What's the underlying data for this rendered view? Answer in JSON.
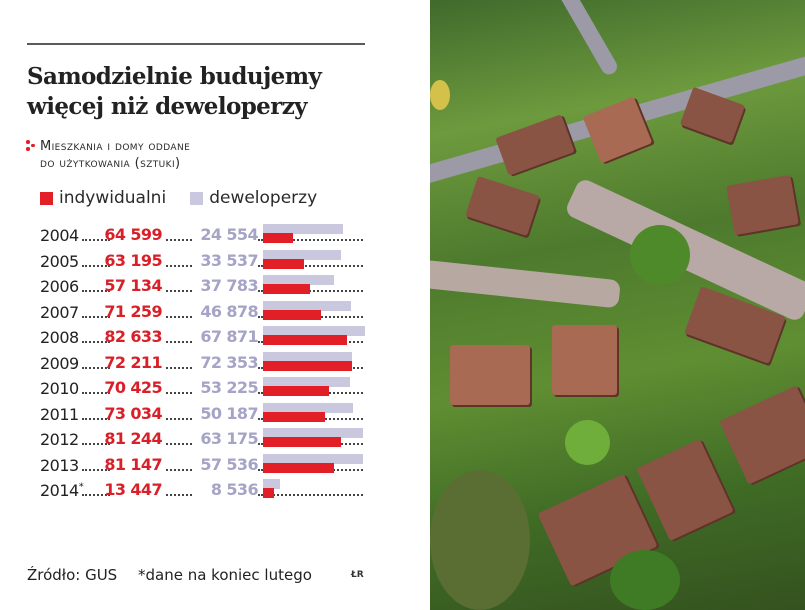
{
  "header": {
    "title_lines": [
      "Samodzielnie budujemy",
      "więcej niż deweloperzy"
    ],
    "subtitle_lines": [
      "Mieszkania i domy oddane",
      "do użytkowania (sztuki)"
    ],
    "bullet_icon": "three-dots-icon"
  },
  "legend": [
    {
      "label": "indywidualni",
      "color": "#e21f26"
    },
    {
      "label": "deweloperzy",
      "color": "#c9c8df"
    }
  ],
  "footer": {
    "source": "Źródło: GUS",
    "note": "*dane na koniec lutego",
    "credit": "ŁR"
  },
  "photo": {
    "description": "aerial tilt-shift photo of suburban houses"
  },
  "chart_data": {
    "type": "bar",
    "title": "Samodzielnie budujemy więcej niż deweloperzy",
    "subtitle": "Mieszkania i domy oddane do użytkowania (sztuki)",
    "categories": [
      "2004",
      "2005",
      "2006",
      "2007",
      "2008",
      "2009",
      "2010",
      "2011",
      "2012",
      "2013",
      "2014*"
    ],
    "category_labels": [
      "2004",
      "2005",
      "2006",
      "2007",
      "2008",
      "2009",
      "2010",
      "2011",
      "2012",
      "2013",
      "2014"
    ],
    "series": [
      {
        "name": "indywidualni",
        "values": [
          64599,
          63195,
          57134,
          71259,
          82633,
          72211,
          70425,
          73034,
          81244,
          81147,
          13447
        ],
        "labels": [
          "64 599",
          "63 195",
          "57 134",
          "71 259",
          "82 633",
          "72 211",
          "70 425",
          "73 034",
          "81 244",
          "81 147",
          "13 447"
        ]
      },
      {
        "name": "deweloperzy",
        "values": [
          24554,
          33537,
          37783,
          46878,
          67871,
          72353,
          53225,
          50187,
          63175,
          57536,
          8536
        ],
        "labels": [
          "24 554",
          "33 537",
          "37 783",
          "46 878",
          "67 871",
          "72 353",
          "53 225",
          "50 187",
          "63 175",
          "57 536",
          "8 536"
        ]
      }
    ],
    "orientation": "horizontal",
    "xlim": [
      0,
      85000
    ],
    "xlabel": "",
    "ylabel": "",
    "legend_position": "top-left",
    "grid": false,
    "annotations": [
      "2014* — dane na koniec lutego"
    ]
  }
}
